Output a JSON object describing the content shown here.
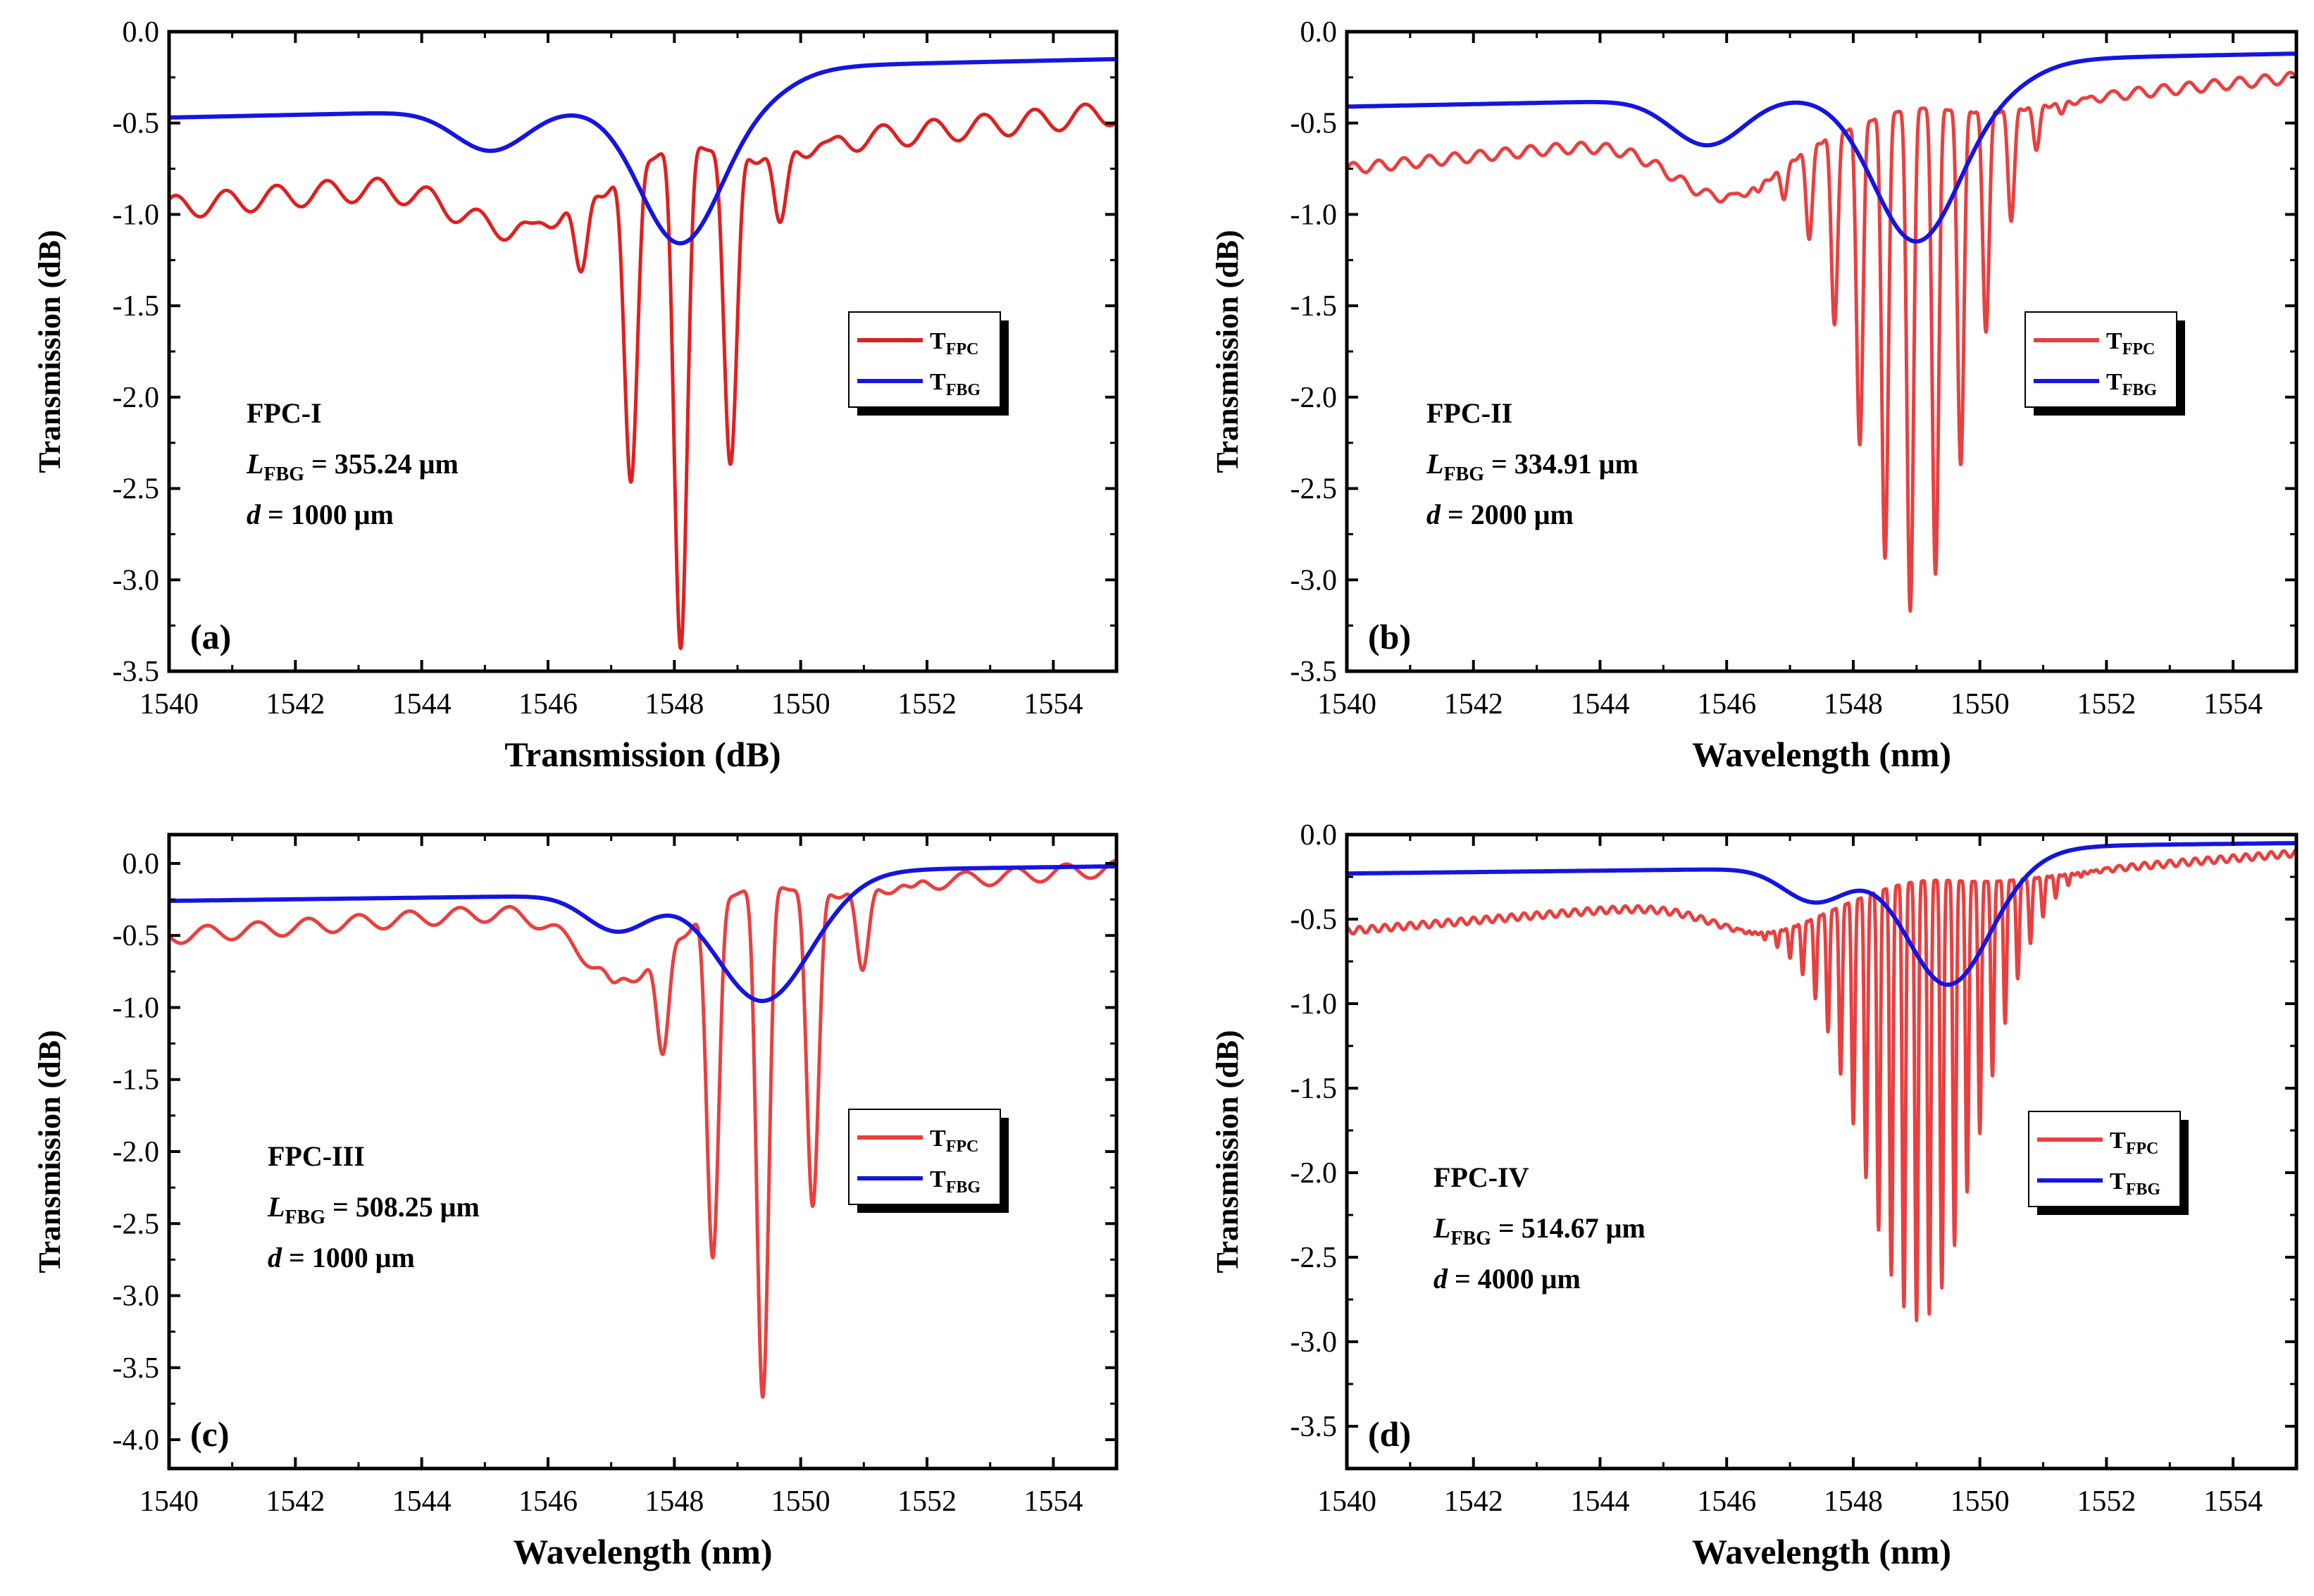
{
  "figure": {
    "series_names": [
      "T_FPC",
      "T_FBG"
    ],
    "series_colors": {
      "T_FPC": "#e02020",
      "T_FBG": "#1515e0"
    }
  },
  "chart_data": [
    {
      "type": "line",
      "panel_label": "(a)",
      "xlabel": "Transmission (dB)",
      "ylabel": "Transmission (dB)",
      "xlim": [
        1540,
        1555
      ],
      "ylim": [
        -3.5,
        0.0
      ],
      "xticks": [
        1540,
        1542,
        1544,
        1546,
        1548,
        1550,
        1552,
        1554
      ],
      "yticks": [
        "0.0",
        "-0.5",
        "-1.0",
        "-1.5",
        "-2.0",
        "-2.5",
        "-3.0",
        "-3.5"
      ],
      "annotation": {
        "name": "FPC-I",
        "L_label": "L",
        "L_sub": "FBG",
        "L_value": " = 355.24 μm",
        "d_label": "d",
        "d_value": " = 1000 μm"
      },
      "legend": [
        {
          "main": "T",
          "sub": "FPC"
        },
        {
          "main": "T",
          "sub": "FBG"
        }
      ],
      "series": [
        {
          "name": "T_FPC",
          "color": "#e02020",
          "model": "fpc",
          "params": {
            "base_start": -0.9,
            "base_end": -0.38,
            "osc_amp": 0.13,
            "fsr": 0.8,
            "x0": 1540.9,
            "dip_center": 1548.1,
            "dip_width": 1.2,
            "dip_depth": 2.75,
            "dip_sharp": 3.0,
            "bump_center": 1545.5,
            "bump_width": 1.3,
            "bump_depth": 0.3
          }
        },
        {
          "name": "T_FBG",
          "color": "#1515e0",
          "model": "fbg",
          "params": {
            "base_start": -0.47,
            "base_end": -0.15,
            "main_center": 1548.1,
            "main_width": 0.9,
            "main_depth": 0.75,
            "side_center": 1545.1,
            "side_width": 0.8,
            "side_depth": 0.22,
            "rise": 1549.8
          }
        }
      ]
    },
    {
      "type": "line",
      "panel_label": "(b)",
      "xlabel": "Wavelength (nm)",
      "ylabel": "Transmission (dB)",
      "xlim": [
        1540,
        1555
      ],
      "ylim": [
        -3.5,
        0.0
      ],
      "xticks": [
        1540,
        1542,
        1544,
        1546,
        1548,
        1550,
        1552,
        1554
      ],
      "yticks": [
        "0.0",
        "-0.5",
        "-1.0",
        "-1.5",
        "-2.0",
        "-2.5",
        "-3.0",
        "-3.5"
      ],
      "annotation": {
        "name": "FPC-II",
        "L_label": "L",
        "L_sub": "FBG",
        "L_value": " = 334.91 μm",
        "d_label": "d",
        "d_value": " = 2000 μm"
      },
      "legend": [
        {
          "main": "T",
          "sub": "FPC"
        },
        {
          "main": "T",
          "sub": "FBG"
        }
      ],
      "series": [
        {
          "name": "T_FPC",
          "color": "#e84040",
          "model": "fpc",
          "params": {
            "base_start": -0.72,
            "base_end": -0.22,
            "osc_amp": 0.06,
            "fsr": 0.4,
            "x0": 1540.1,
            "dip_center": 1548.95,
            "dip_width": 1.3,
            "dip_depth": 2.75,
            "dip_sharp": 3.0,
            "bump_center": 1546.0,
            "bump_width": 1.2,
            "bump_depth": 0.35
          }
        },
        {
          "name": "T_FBG",
          "color": "#1515e0",
          "model": "fbg",
          "params": {
            "base_start": -0.41,
            "base_end": -0.12,
            "main_center": 1549.0,
            "main_width": 0.95,
            "main_depth": 0.8,
            "side_center": 1545.7,
            "side_width": 0.8,
            "side_depth": 0.25,
            "rise": 1550.8
          }
        }
      ]
    },
    {
      "type": "line",
      "panel_label": "(c)",
      "xlabel": "Wavelength (nm)",
      "ylabel": "Transmission (dB)",
      "xlim": [
        1540,
        1555
      ],
      "ylim": [
        -4.2,
        0.2
      ],
      "xticks": [
        1540,
        1542,
        1544,
        1546,
        1548,
        1550,
        1552,
        1554
      ],
      "yticks": [
        "0.0",
        "-0.5",
        "-1.0",
        "-1.5",
        "-2.0",
        "-2.5",
        "-3.0",
        "-3.5",
        "-4.0"
      ],
      "annotation": {
        "name": "FPC-III",
        "L_label": "L",
        "L_sub": "FBG",
        "L_value": " = 508.25 μm",
        "d_label": "d",
        "d_value": " = 1000 μm"
      },
      "legend": [
        {
          "main": "T",
          "sub": "FPC"
        },
        {
          "main": "T",
          "sub": "FBG"
        }
      ],
      "series": [
        {
          "name": "T_FPC",
          "color": "#e84040",
          "model": "fpc",
          "params": {
            "base_start": -0.45,
            "base_end": 0.02,
            "osc_amp": 0.11,
            "fsr": 0.8,
            "x0": 1541.4,
            "dip_center": 1549.35,
            "dip_width": 1.25,
            "dip_depth": 3.55,
            "dip_sharp": 3.5,
            "bump_center": 1547.2,
            "bump_width": 1.0,
            "bump_depth": 0.5
          }
        },
        {
          "name": "T_FBG",
          "color": "#1515e0",
          "model": "fbg",
          "params": {
            "base_start": -0.26,
            "base_end": -0.02,
            "main_center": 1549.4,
            "main_width": 1.0,
            "main_depth": 0.75,
            "side_center": 1547.1,
            "side_width": 0.7,
            "side_depth": 0.25,
            "rise": 1550.8
          }
        }
      ]
    },
    {
      "type": "line",
      "panel_label": "(d)",
      "xlabel": "Wavelength (nm)",
      "ylabel": "Transmission (dB)",
      "xlim": [
        1540,
        1555
      ],
      "ylim": [
        -3.75,
        0.0
      ],
      "xticks": [
        1540,
        1542,
        1544,
        1546,
        1548,
        1550,
        1552,
        1554
      ],
      "yticks": [
        "0.0",
        "-0.5",
        "-1.0",
        "-1.5",
        "-2.0",
        "-2.5",
        "-3.0",
        "-3.5"
      ],
      "annotation": {
        "name": "FPC-IV",
        "L_label": "L",
        "L_sub": "FBG",
        "L_value": " = 514.67 μm",
        "d_label": "d",
        "d_value": " = 4000 μm"
      },
      "legend": [
        {
          "main": "T",
          "sub": "FPC"
        },
        {
          "main": "T",
          "sub": "FBG"
        }
      ],
      "series": [
        {
          "name": "T_FPC",
          "color": "#e84040",
          "model": "fpc",
          "params": {
            "base_start": -0.55,
            "base_end": -0.09,
            "osc_amp": 0.04,
            "fsr": 0.2,
            "x0": 1540.0,
            "dip_center": 1549.05,
            "dip_width": 1.3,
            "dip_depth": 2.6,
            "dip_sharp": 3.0,
            "bump_center": 1546.6,
            "bump_width": 1.2,
            "bump_depth": 0.2
          }
        },
        {
          "name": "T_FBG",
          "color": "#1515e0",
          "model": "fbg",
          "params": {
            "base_start": -0.23,
            "base_end": -0.05,
            "main_center": 1549.5,
            "main_width": 0.9,
            "main_depth": 0.7,
            "side_center": 1547.4,
            "side_width": 0.7,
            "side_depth": 0.2,
            "rise": 1550.9
          }
        }
      ]
    }
  ]
}
